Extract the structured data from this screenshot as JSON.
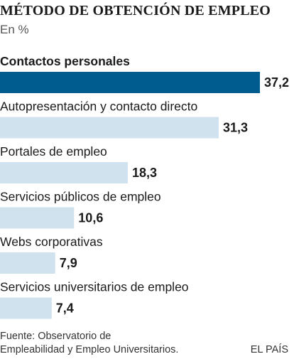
{
  "header": {
    "title": "MÉTODO DE OBTENCIÓN DE EMPLEO",
    "subtitle": "En %"
  },
  "chart_data": {
    "type": "bar",
    "orientation": "horizontal",
    "categories": [
      "Contactos personales",
      "Autopresentación y contacto directo",
      "Portales de empleo",
      "Servicios públicos de empleo",
      "Webs corporativas",
      "Servicios universitarios de empleo"
    ],
    "values": [
      37.2,
      31.3,
      18.3,
      10.6,
      7.9,
      7.4
    ],
    "value_labels": [
      "37,2",
      "31,3",
      "18,3",
      "10,6",
      "7,9",
      "7,4"
    ],
    "highlight_index": 0,
    "xlim": [
      0,
      37.2
    ],
    "grid": false,
    "legend": "none",
    "colors": {
      "highlight": "#005b8f",
      "bar": "#cfe2ee",
      "label": "#1a1a1a",
      "value": "#1a1a1a"
    }
  },
  "footer": {
    "source_line1": "Fuente: Observatorio de",
    "source_line2": "Empleabilidad y Empleo Universitarios.",
    "brand": "EL PAÍS"
  }
}
